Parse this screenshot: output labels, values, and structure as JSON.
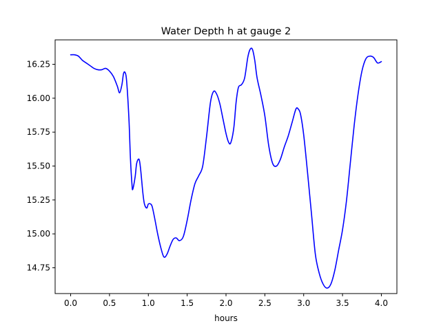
{
  "chart_data": {
    "type": "line",
    "title": "Water Depth h at gauge 2",
    "xlabel": "hours",
    "ylabel": "",
    "xlim": [
      -0.2,
      4.2
    ],
    "ylim": [
      14.56,
      16.43
    ],
    "xticks": [
      0.0,
      0.5,
      1.0,
      1.5,
      2.0,
      2.5,
      3.0,
      3.5,
      4.0
    ],
    "xtick_labels": [
      "0.0",
      "0.5",
      "1.0",
      "1.5",
      "2.0",
      "2.5",
      "3.0",
      "3.5",
      "4.0"
    ],
    "yticks": [
      14.75,
      15.0,
      15.25,
      15.5,
      15.75,
      16.0,
      16.25
    ],
    "ytick_labels": [
      "14.75",
      "15.00",
      "15.25",
      "15.50",
      "15.75",
      "16.00",
      "16.25"
    ],
    "grid": false,
    "series": [
      {
        "color": "#0000ff",
        "x": [
          0.0,
          0.05,
          0.1,
          0.15,
          0.2,
          0.25,
          0.3,
          0.35,
          0.4,
          0.45,
          0.5,
          0.55,
          0.6,
          0.63,
          0.66,
          0.68,
          0.7,
          0.72,
          0.75,
          0.77,
          0.79,
          0.8,
          0.83,
          0.85,
          0.88,
          0.9,
          0.93,
          0.95,
          0.98,
          1.0,
          1.03,
          1.05,
          1.08,
          1.12,
          1.16,
          1.2,
          1.24,
          1.28,
          1.32,
          1.36,
          1.4,
          1.45,
          1.5,
          1.55,
          1.6,
          1.65,
          1.7,
          1.75,
          1.8,
          1.84,
          1.88,
          1.92,
          1.96,
          2.0,
          2.03,
          2.06,
          2.1,
          2.13,
          2.16,
          2.2,
          2.24,
          2.28,
          2.31,
          2.34,
          2.37,
          2.4,
          2.45,
          2.5,
          2.55,
          2.6,
          2.65,
          2.7,
          2.75,
          2.8,
          2.85,
          2.9,
          2.93,
          2.96,
          3.0,
          3.05,
          3.1,
          3.15,
          3.2,
          3.25,
          3.3,
          3.35,
          3.4,
          3.45,
          3.5,
          3.55,
          3.6,
          3.65,
          3.7,
          3.75,
          3.8,
          3.85,
          3.9,
          3.95,
          4.0
        ],
        "y": [
          16.32,
          16.32,
          16.31,
          16.28,
          16.26,
          16.24,
          16.22,
          16.21,
          16.21,
          16.22,
          16.2,
          16.16,
          16.09,
          16.04,
          16.1,
          16.18,
          16.19,
          16.13,
          15.85,
          15.55,
          15.36,
          15.33,
          15.42,
          15.52,
          15.55,
          15.48,
          15.3,
          15.22,
          15.19,
          15.22,
          15.22,
          15.2,
          15.12,
          15.0,
          14.9,
          14.83,
          14.85,
          14.91,
          14.96,
          14.97,
          14.95,
          14.98,
          15.1,
          15.25,
          15.37,
          15.43,
          15.5,
          15.72,
          15.97,
          16.05,
          16.03,
          15.96,
          15.85,
          15.74,
          15.68,
          15.67,
          15.78,
          15.97,
          16.08,
          16.1,
          16.15,
          16.3,
          16.36,
          16.36,
          16.28,
          16.15,
          16.02,
          15.87,
          15.65,
          15.52,
          15.5,
          15.55,
          15.64,
          15.72,
          15.82,
          15.92,
          15.92,
          15.88,
          15.73,
          15.45,
          15.15,
          14.85,
          14.71,
          14.63,
          14.6,
          14.63,
          14.73,
          14.88,
          15.03,
          15.24,
          15.52,
          15.8,
          16.03,
          16.2,
          16.29,
          16.31,
          16.3,
          16.26,
          16.27
        ]
      }
    ]
  }
}
